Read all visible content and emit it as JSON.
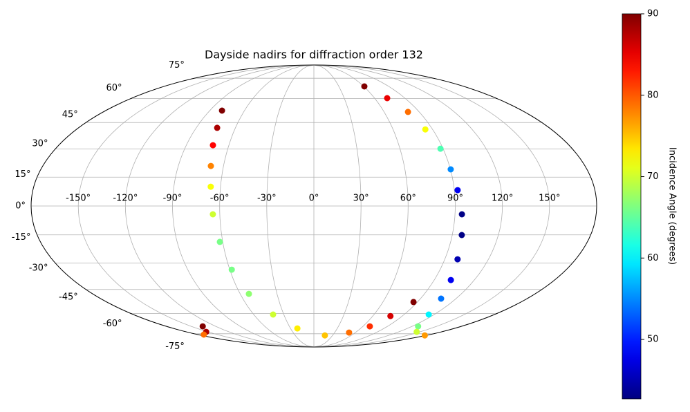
{
  "chart_data": {
    "type": "scatter",
    "projection": "mollweide",
    "title": "Dayside nadirs for diffraction order 132",
    "x": [
      -79.4,
      -74.0,
      -71.2,
      -68.4,
      -66.3,
      -64.4,
      -61.9,
      -58.6,
      -52.9,
      -40.7,
      -21.2,
      17.6,
      50.8,
      68.3,
      77.9,
      86.6,
      60.6,
      72.4,
      80.4,
      84.5,
      88.2,
      90.2,
      92.1,
      94.4,
      96.2,
      98.8,
      102.4,
      107.4,
      114.5,
      127.3,
      145.0,
      177.6,
      -135.8,
      -152.0,
      -170.7
    ],
    "y": [
      52.2,
      41.9,
      32.1,
      20.9,
      10.0,
      -4.3,
      -18.7,
      -33.7,
      -47.6,
      -60.7,
      -70.7,
      -76.4,
      -74.0,
      -69.1,
      -61.7,
      -52.6,
      68.5,
      60.2,
      51.4,
      41.0,
      30.2,
      19.1,
      8.2,
      -4.3,
      -15.1,
      -28.0,
      -39.5,
      -50.5,
      -60.7,
      -69.1,
      -73.4,
      -76.4,
      -69.1,
      -73.4,
      -75.7
    ],
    "c": [
      90,
      88,
      84,
      78,
      72,
      70,
      66,
      66,
      67,
      70,
      73,
      75,
      79,
      82,
      86,
      90,
      90,
      85,
      79,
      72,
      64,
      55,
      48,
      43,
      43,
      45,
      48,
      54,
      60,
      66,
      70,
      77,
      90,
      88,
      79
    ],
    "colormap": "jet",
    "clim": [
      42.7,
      90
    ],
    "xlim": [
      -180,
      180
    ],
    "ylim": [
      -90,
      90
    ],
    "xticks": [
      {
        "value": -150,
        "label": "-150°"
      },
      {
        "value": -120,
        "label": "-120°"
      },
      {
        "value": -90,
        "label": "-90°"
      },
      {
        "value": -60,
        "label": "-60°"
      },
      {
        "value": -30,
        "label": "-30°"
      },
      {
        "value": 0,
        "label": "0°"
      },
      {
        "value": 30,
        "label": "30°"
      },
      {
        "value": 60,
        "label": "60°"
      },
      {
        "value": 90,
        "label": "90°"
      },
      {
        "value": 120,
        "label": "120°"
      },
      {
        "value": 150,
        "label": "150°"
      }
    ],
    "yticks": [
      {
        "value": -75,
        "label": "-75°"
      },
      {
        "value": -60,
        "label": "-60°"
      },
      {
        "value": -45,
        "label": "-45°"
      },
      {
        "value": -30,
        "label": "-30°"
      },
      {
        "value": -15,
        "label": "-15°"
      },
      {
        "value": 0,
        "label": "0°"
      },
      {
        "value": 15,
        "label": "15°"
      },
      {
        "value": 30,
        "label": "30°"
      },
      {
        "value": 45,
        "label": "45°"
      },
      {
        "value": 60,
        "label": "60°"
      },
      {
        "value": 75,
        "label": "75°"
      }
    ],
    "cbar_ticks": [
      50,
      60,
      70,
      80,
      90
    ],
    "cbar_label": "Incidence Angle (degrees)",
    "grid": true
  }
}
